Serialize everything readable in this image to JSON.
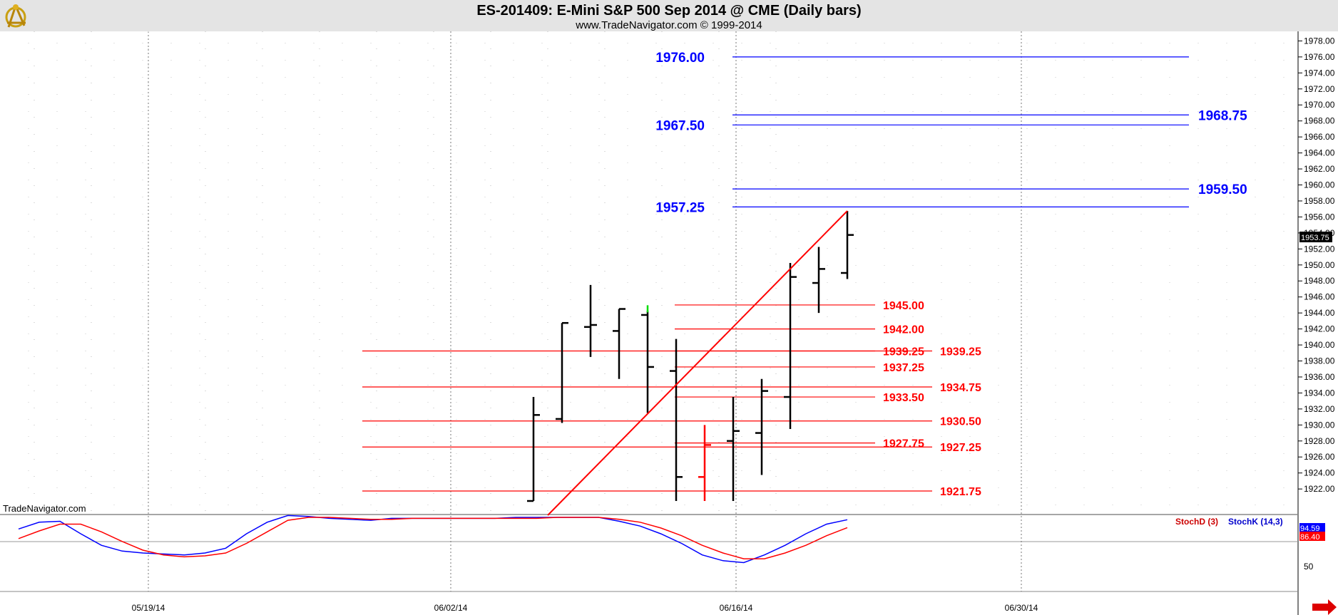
{
  "header": {
    "title": "ES-201409:  E-Mini S&P 500 Sep 2014 @ CME  (Daily bars)",
    "subtitle": "www.TradeNavigator.com © 1999-2014"
  },
  "watermark": "TradeNavigator.com",
  "icons": {
    "logo": "sextant-logo-icon",
    "scroll": "red-right-arrow-icon"
  },
  "colors": {
    "bar": "#000000",
    "bar_highlight_red": "#ff0000",
    "bar_highlight_green": "#00dd00",
    "trendline": "#ff0000",
    "blue_levels": "#0000ff",
    "red_levels": "#ff0000",
    "stoch_k": "#0000ff",
    "stoch_d": "#ff0000"
  },
  "chart_data": [
    {
      "type": "ohlc",
      "title": "ES-201409:  E-Mini S&P 500 Sep 2014 @ CME  (Daily bars)",
      "ylim": [
        1920.5,
        1978.75
      ],
      "y_ticks": [
        "1978.00",
        "1976.00",
        "1974.00",
        "1972.00",
        "1970.00",
        "1968.00",
        "1966.00",
        "1964.00",
        "1962.00",
        "1960.00",
        "1958.00",
        "1956.00",
        "1954.00",
        "1952.00",
        "1950.00",
        "1948.00",
        "1946.00",
        "1944.00",
        "1942.00",
        "1940.00",
        "1938.00",
        "1936.00",
        "1934.00",
        "1932.00",
        "1930.00",
        "1928.00",
        "1926.00",
        "1924.00",
        "1922.00"
      ],
      "x_ticks": [
        "05/19/14",
        "06/02/14",
        "06/16/14",
        "06/30/14"
      ],
      "last_price": "1953.75",
      "grid": true,
      "bars": [
        {
          "date": "06/05/14",
          "open": 1920.5,
          "high": 1933.5,
          "low": 1920.5,
          "close": 1931.25
        },
        {
          "date": "06/06/14",
          "open": 1930.75,
          "high": 1942.75,
          "low": 1930.25,
          "close": 1942.75
        },
        {
          "date": "06/09/14",
          "open": 1942.25,
          "high": 1947.5,
          "low": 1938.5,
          "close": 1942.5
        },
        {
          "date": "06/10/14",
          "open": 1941.75,
          "high": 1944.5,
          "low": 1935.75,
          "close": 1944.5
        },
        {
          "date": "06/11/14",
          "open": 1943.75,
          "high": 1944.25,
          "low": 1931.5,
          "close": 1937.25,
          "high_mark": "green"
        },
        {
          "date": "06/12/14",
          "open": 1936.75,
          "high": 1940.75,
          "low": 1920.5,
          "close": 1923.5
        },
        {
          "date": "06/13/14",
          "open": 1923.5,
          "high": 1930.0,
          "low": 1920.5,
          "close": 1927.5,
          "color": "red"
        },
        {
          "date": "06/16/14",
          "open": 1928.0,
          "high": 1933.5,
          "low": 1920.5,
          "close": 1929.25
        },
        {
          "date": "06/17/14",
          "open": 1929.0,
          "high": 1935.75,
          "low": 1923.75,
          "close": 1934.25
        },
        {
          "date": "06/18/14",
          "open": 1933.5,
          "high": 1950.25,
          "low": 1929.5,
          "close": 1948.5
        },
        {
          "date": "06/19/14",
          "open": 1947.75,
          "high": 1952.25,
          "low": 1944.0,
          "close": 1949.5
        },
        {
          "date": "06/20/14",
          "open": 1949.0,
          "high": 1956.75,
          "low": 1948.25,
          "close": 1953.75
        }
      ],
      "trendline": {
        "from": {
          "date": "06/05/14",
          "price": 1920.5
        },
        "to": {
          "date": "06/20/14",
          "price": 1956.75
        }
      },
      "blue_levels": [
        {
          "label": "1976.00",
          "price": 1976.0,
          "side": "left"
        },
        {
          "label": "1967.50",
          "price": 1967.5,
          "side": "left"
        },
        {
          "label": "1968.75",
          "price": 1968.75,
          "side": "right"
        },
        {
          "label": "1959.50",
          "price": 1959.5,
          "side": "right"
        },
        {
          "label": "1957.25",
          "price": 1957.25,
          "side": "left"
        }
      ],
      "red_levels_short": [
        {
          "label": "1945.00",
          "price": 1945.0
        },
        {
          "label": "1942.00",
          "price": 1942.0
        },
        {
          "label": "1939.25",
          "price": 1939.25
        },
        {
          "label": "1937.25",
          "price": 1937.25
        },
        {
          "label": "1933.50",
          "price": 1933.5
        },
        {
          "label": "1927.75",
          "price": 1927.75
        }
      ],
      "red_levels_long": [
        {
          "label": "1939.25",
          "price": 1939.25
        },
        {
          "label": "1934.75",
          "price": 1934.75
        },
        {
          "label": "1930.50",
          "price": 1930.5
        },
        {
          "label": "1927.25",
          "price": 1927.25
        },
        {
          "label": "1921.75",
          "price": 1921.75
        }
      ]
    },
    {
      "type": "line",
      "title": "",
      "legend": [
        "StochD (3)",
        "StochK (14,3)"
      ],
      "ylim": [
        20,
        100
      ],
      "y_ticks": [
        "50"
      ],
      "badges": {
        "k": "94.59",
        "d": "86.40"
      },
      "series": [
        {
          "name": "StochK (14,3)",
          "values": [
            85,
            92,
            93,
            80,
            68,
            62,
            60,
            59,
            58,
            60,
            65,
            80,
            92,
            99,
            98,
            96,
            95,
            94,
            96,
            96,
            96,
            96,
            96,
            96,
            97,
            97,
            97,
            97,
            97,
            93,
            88,
            80,
            70,
            58,
            52,
            50,
            58,
            68,
            80,
            90,
            94.59
          ]
        },
        {
          "name": "StochD (3)",
          "values": [
            75,
            83,
            90,
            90,
            82,
            72,
            63,
            58,
            56,
            57,
            60,
            70,
            82,
            94,
            97,
            97,
            96,
            95,
            95,
            96,
            96,
            96,
            96,
            96,
            96,
            96,
            97,
            97,
            97,
            95,
            92,
            86,
            78,
            68,
            60,
            54,
            54,
            60,
            68,
            78,
            86.4
          ]
        }
      ]
    }
  ]
}
